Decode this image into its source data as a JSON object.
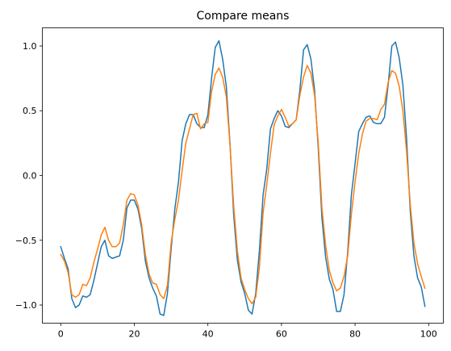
{
  "chart_data": {
    "type": "line",
    "title": "Compare means",
    "xlabel": "",
    "ylabel": "",
    "xlim": [
      -5,
      104
    ],
    "ylim": [
      -1.14,
      1.14
    ],
    "xticks": [
      0,
      20,
      40,
      60,
      80,
      100
    ],
    "xtick_labels": [
      "0",
      "20",
      "40",
      "60",
      "80",
      "100"
    ],
    "yticks": [
      -1.0,
      -0.5,
      0.0,
      0.5,
      1.0
    ],
    "ytick_labels": [
      "−1.0",
      "−0.5",
      "0.0",
      "0.5",
      "1.0"
    ],
    "grid": false,
    "legend": "none",
    "x": [
      0,
      1,
      2,
      3,
      4,
      5,
      6,
      7,
      8,
      9,
      10,
      11,
      12,
      13,
      14,
      15,
      16,
      17,
      18,
      19,
      20,
      21,
      22,
      23,
      24,
      25,
      26,
      27,
      28,
      29,
      30,
      31,
      32,
      33,
      34,
      35,
      36,
      37,
      38,
      39,
      40,
      41,
      42,
      43,
      44,
      45,
      46,
      47,
      48,
      49,
      50,
      51,
      52,
      53,
      54,
      55,
      56,
      57,
      58,
      59,
      60,
      61,
      62,
      63,
      64,
      65,
      66,
      67,
      68,
      69,
      70,
      71,
      72,
      73,
      74,
      75,
      76,
      77,
      78,
      79,
      80,
      81,
      82,
      83,
      84,
      85,
      86,
      87,
      88,
      89,
      90,
      91,
      92,
      93,
      94,
      95,
      96,
      97,
      98,
      99
    ],
    "series": [
      {
        "color": "#1f77b4",
        "values": [
          -0.55,
          -0.64,
          -0.72,
          -0.95,
          -1.02,
          -1.0,
          -0.93,
          -0.94,
          -0.92,
          -0.81,
          -0.68,
          -0.55,
          -0.5,
          -0.62,
          -0.64,
          -0.63,
          -0.62,
          -0.5,
          -0.25,
          -0.19,
          -0.19,
          -0.26,
          -0.41,
          -0.66,
          -0.79,
          -0.87,
          -0.93,
          -1.07,
          -1.08,
          -0.91,
          -0.57,
          -0.26,
          -0.05,
          0.27,
          0.4,
          0.47,
          0.47,
          0.4,
          0.37,
          0.37,
          0.47,
          0.75,
          0.99,
          1.04,
          0.9,
          0.69,
          0.25,
          -0.3,
          -0.65,
          -0.82,
          -0.91,
          -1.04,
          -1.07,
          -0.91,
          -0.58,
          -0.15,
          0.05,
          0.36,
          0.44,
          0.5,
          0.46,
          0.38,
          0.37,
          0.4,
          0.43,
          0.66,
          0.97,
          1.01,
          0.9,
          0.66,
          0.21,
          -0.33,
          -0.63,
          -0.8,
          -0.88,
          -1.05,
          -1.05,
          -0.92,
          -0.59,
          -0.15,
          0.09,
          0.34,
          0.4,
          0.45,
          0.46,
          0.41,
          0.4,
          0.4,
          0.45,
          0.7,
          1.0,
          1.03,
          0.91,
          0.7,
          0.29,
          -0.27,
          -0.62,
          -0.79,
          -0.86,
          -1.01
        ]
      },
      {
        "color": "#ff7f0e",
        "values": [
          -0.61,
          -0.66,
          -0.75,
          -0.92,
          -0.94,
          -0.92,
          -0.84,
          -0.85,
          -0.79,
          -0.67,
          -0.57,
          -0.46,
          -0.4,
          -0.5,
          -0.55,
          -0.55,
          -0.52,
          -0.38,
          -0.19,
          -0.14,
          -0.15,
          -0.23,
          -0.38,
          -0.61,
          -0.76,
          -0.83,
          -0.84,
          -0.92,
          -0.95,
          -0.85,
          -0.52,
          -0.34,
          -0.19,
          0.04,
          0.25,
          0.36,
          0.47,
          0.48,
          0.36,
          0.4,
          0.41,
          0.65,
          0.78,
          0.83,
          0.76,
          0.61,
          0.24,
          -0.23,
          -0.58,
          -0.79,
          -0.88,
          -0.95,
          -0.99,
          -0.94,
          -0.71,
          -0.29,
          -0.07,
          0.17,
          0.39,
          0.46,
          0.51,
          0.45,
          0.38,
          0.4,
          0.43,
          0.62,
          0.76,
          0.85,
          0.79,
          0.62,
          0.25,
          -0.25,
          -0.54,
          -0.73,
          -0.83,
          -0.89,
          -0.87,
          -0.78,
          -0.62,
          -0.3,
          -0.05,
          0.17,
          0.32,
          0.42,
          0.44,
          0.44,
          0.43,
          0.51,
          0.55,
          0.72,
          0.81,
          0.79,
          0.69,
          0.5,
          0.19,
          -0.22,
          -0.52,
          -0.68,
          -0.78,
          -0.87
        ]
      }
    ]
  }
}
